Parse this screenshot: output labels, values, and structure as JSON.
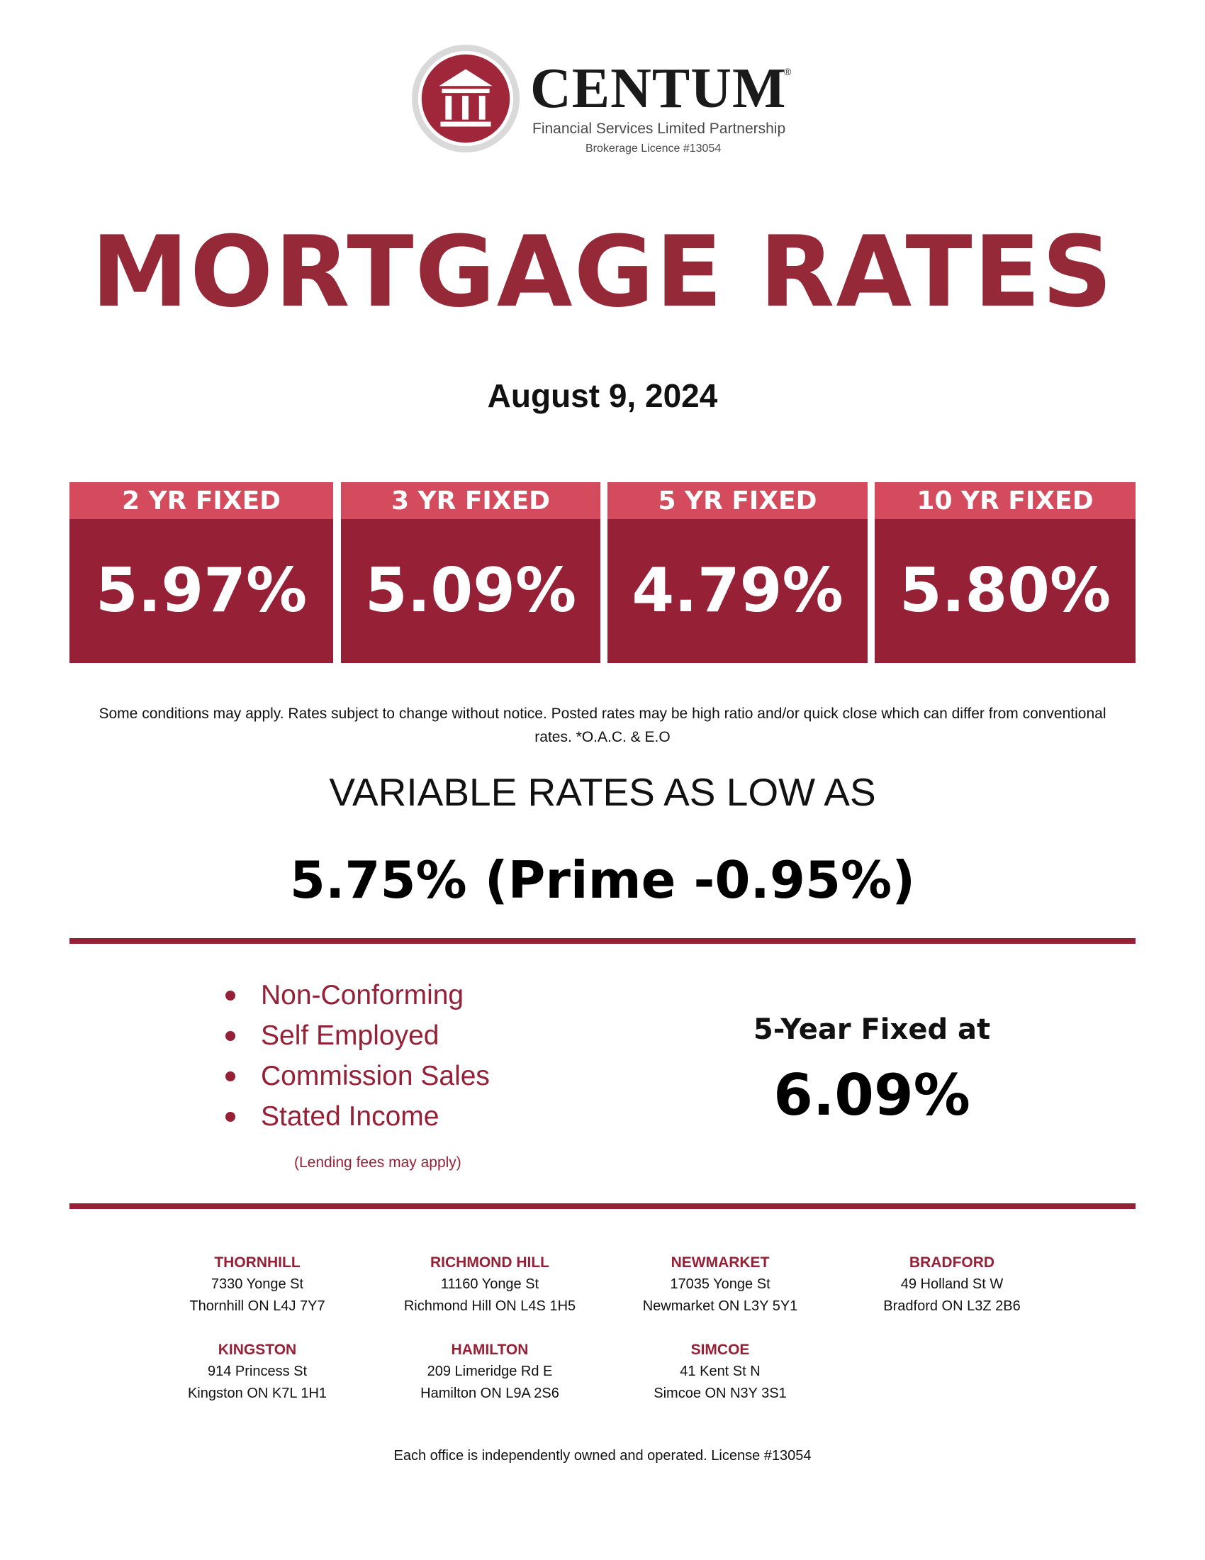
{
  "brand": {
    "name": "CENTUM",
    "registered_mark": "®",
    "subtitle": "Financial Services Limited Partnership",
    "license": "Brokerage Licence #13054",
    "logo_color": "#a0273a"
  },
  "title": "MORTGAGE RATES",
  "date": "August 9, 2024",
  "fixed_rates": [
    {
      "term": "2 YR FIXED",
      "rate": "5.97%"
    },
    {
      "term": "3 YR FIXED",
      "rate": "5.09%"
    },
    {
      "term": "5 YR FIXED",
      "rate": "4.79%"
    },
    {
      "term": "10 YR FIXED",
      "rate": "5.80%"
    }
  ],
  "disclaimer": "Some conditions may apply. Rates subject to change without notice. Posted rates may be high ratio and/or quick close which can differ from conventional rates. *O.A.C. & E.O",
  "variable": {
    "heading": "VARIABLE RATES AS LOW AS",
    "rate": "5.75% (Prime -0.95%)"
  },
  "special_programs": {
    "items": [
      "Non-Conforming",
      "Self Employed",
      "Commission Sales",
      "Stated Income"
    ],
    "note": "(Lending fees may apply)",
    "fixed_label": "5-Year Fixed at",
    "fixed_rate": "6.09%"
  },
  "offices": [
    {
      "name": "THORNHILL",
      "street": "7330 Yonge St",
      "city": "Thornhill ON  L4J 7Y7"
    },
    {
      "name": "RICHMOND HILL",
      "street": "11160 Yonge St",
      "city": "Richmond Hill ON  L4S 1H5"
    },
    {
      "name": "NEWMARKET",
      "street": "17035 Yonge St",
      "city": "Newmarket ON  L3Y 5Y1"
    },
    {
      "name": "BRADFORD",
      "street": "49 Holland St W",
      "city": "Bradford ON  L3Z 2B6"
    },
    {
      "name": "KINGSTON",
      "street": "914 Princess St",
      "city": "Kingston ON  K7L 1H1"
    },
    {
      "name": "HAMILTON",
      "street": "209 Limeridge Rd E",
      "city": "Hamilton ON  L9A 2S6"
    },
    {
      "name": "SIMCOE",
      "street": "41 Kent St N",
      "city": "Simcoe ON  N3Y 3S1"
    }
  ],
  "footer": "Each office is independently owned and operated. License #13054",
  "colors": {
    "primary": "#962036",
    "header_pink": "#d54b5e"
  }
}
